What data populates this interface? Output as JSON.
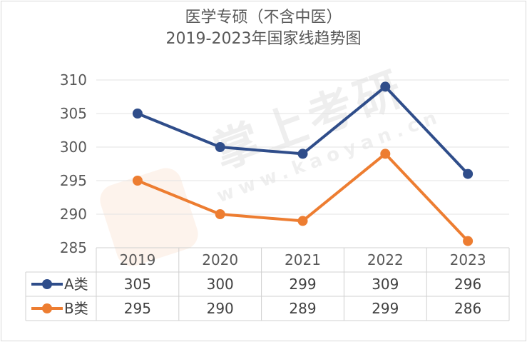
{
  "title": {
    "line1": "医学专硕（不含中医）",
    "line2": "2019-2023年国家线趋势图"
  },
  "watermark": {
    "brand": "掌上考研",
    "url": "www.kaoyan.cn"
  },
  "chart_data": {
    "type": "line",
    "title": "医学专硕（不含中医） 2019-2023年国家线趋势图",
    "categories": [
      "2019",
      "2020",
      "2021",
      "2022",
      "2023"
    ],
    "series": [
      {
        "name": "A类",
        "values": [
          305,
          300,
          299,
          309,
          296
        ],
        "color": "#2f4d8a"
      },
      {
        "name": "B类",
        "values": [
          295,
          290,
          289,
          299,
          286
        ],
        "color": "#ed7d31"
      }
    ],
    "ylim": [
      285,
      310
    ],
    "yticks": [
      285,
      290,
      295,
      300,
      305,
      310
    ],
    "grid": true,
    "legend": "data-table",
    "data_table": true
  }
}
